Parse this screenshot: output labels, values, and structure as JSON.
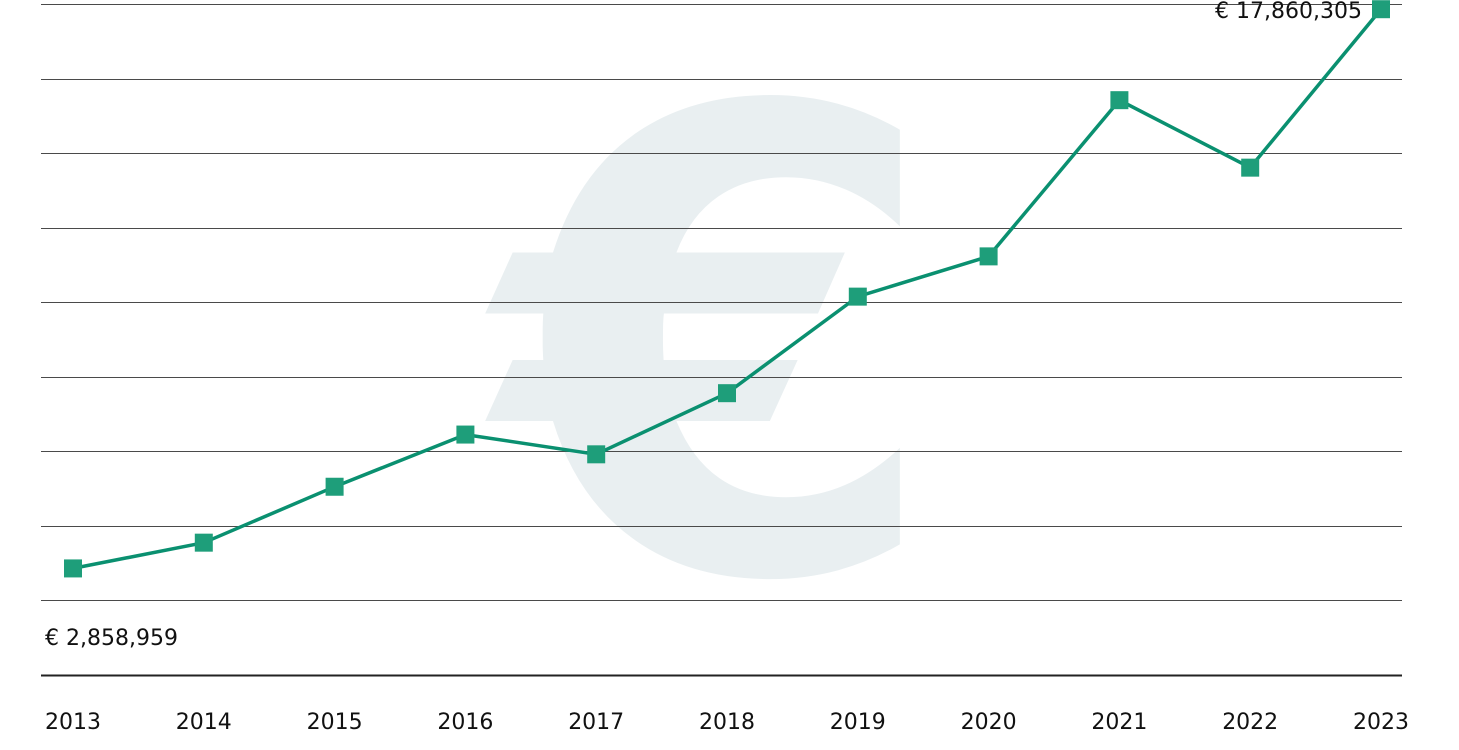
{
  "chart_data": {
    "type": "line",
    "title": "",
    "xlabel": "",
    "ylabel": "",
    "x": [
      "2013",
      "2014",
      "2015",
      "2016",
      "2017",
      "2018",
      "2019",
      "2020",
      "2021",
      "2022",
      "2023"
    ],
    "series": [
      {
        "values": [
          2858959,
          3550000,
          5050000,
          6450000,
          5920000,
          7560000,
          10150000,
          11230000,
          15420000,
          13610000,
          17860305
        ]
      }
    ],
    "annotations": [
      {
        "text": "€ 2,858,959",
        "x": "2013"
      },
      {
        "text": "€ 17,860,305",
        "x": "2023"
      }
    ],
    "ylim": [
      0,
      18000000
    ],
    "y_ticks": [
      0,
      2000000,
      4000000,
      6000000,
      8000000,
      10000000,
      12000000,
      14000000,
      16000000,
      18000000
    ],
    "grid": true,
    "legend": "none",
    "watermark_glyph": "€",
    "colors": {
      "series": "#0a9070",
      "marker": "#1e9e7a",
      "watermark": "#e9eff1",
      "grid": "#4a4a4a"
    }
  }
}
